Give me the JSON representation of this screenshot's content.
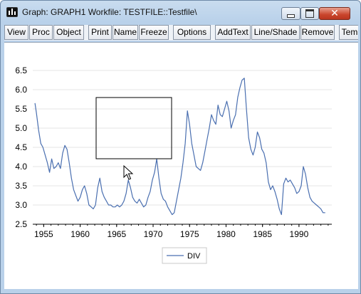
{
  "window": {
    "title": "Graph: GRAPH1   Workfile: TESTFILE::Testfile\\",
    "buttons": {
      "minimize_icon": "minimize-icon",
      "maximize_icon": "maximize-icon",
      "close_icon": "close-icon",
      "close_glyph": "✕"
    }
  },
  "toolbar": {
    "buttons": [
      "View",
      "Proc",
      "Object",
      "Print",
      "Name",
      "Freeze",
      "Options",
      "AddText",
      "Line/Shade",
      "Remove",
      "Tem"
    ]
  },
  "chart_data": {
    "type": "line",
    "title": "",
    "xlabel": "",
    "ylabel": "",
    "xlim": [
      1953.5,
      1994.5
    ],
    "ylim": [
      2.5,
      6.5
    ],
    "x_ticks": [
      "1955",
      "1960",
      "1965",
      "1970",
      "1975",
      "1980",
      "1985",
      "1990"
    ],
    "y_ticks": [
      "2.5",
      "3.0",
      "3.5",
      "4.0",
      "4.5",
      "5.0",
      "5.5",
      "6.0",
      "6.5"
    ],
    "grid": true,
    "legend": "bottom-center",
    "series": [
      {
        "name": "DIV",
        "color": "#4a6fb0",
        "points": [
          [
            1953.8,
            5.65
          ],
          [
            1954.0,
            5.4
          ],
          [
            1954.3,
            4.95
          ],
          [
            1954.6,
            4.6
          ],
          [
            1954.9,
            4.5
          ],
          [
            1955.2,
            4.3
          ],
          [
            1955.5,
            4.1
          ],
          [
            1955.8,
            3.85
          ],
          [
            1956.1,
            4.2
          ],
          [
            1956.4,
            3.95
          ],
          [
            1956.7,
            4.0
          ],
          [
            1957.0,
            4.1
          ],
          [
            1957.3,
            3.95
          ],
          [
            1957.6,
            4.35
          ],
          [
            1957.9,
            4.55
          ],
          [
            1958.2,
            4.45
          ],
          [
            1958.5,
            4.1
          ],
          [
            1958.8,
            3.7
          ],
          [
            1959.1,
            3.4
          ],
          [
            1959.4,
            3.25
          ],
          [
            1959.7,
            3.1
          ],
          [
            1960.0,
            3.2
          ],
          [
            1960.3,
            3.4
          ],
          [
            1960.6,
            3.5
          ],
          [
            1960.9,
            3.3
          ],
          [
            1961.2,
            3.0
          ],
          [
            1961.5,
            2.95
          ],
          [
            1961.8,
            2.9
          ],
          [
            1962.1,
            3.0
          ],
          [
            1962.4,
            3.45
          ],
          [
            1962.7,
            3.7
          ],
          [
            1963.0,
            3.35
          ],
          [
            1963.3,
            3.2
          ],
          [
            1963.6,
            3.1
          ],
          [
            1963.9,
            3.0
          ],
          [
            1964.2,
            3.0
          ],
          [
            1964.5,
            2.95
          ],
          [
            1964.8,
            2.95
          ],
          [
            1965.1,
            3.0
          ],
          [
            1965.4,
            2.95
          ],
          [
            1965.7,
            3.0
          ],
          [
            1966.0,
            3.1
          ],
          [
            1966.3,
            3.3
          ],
          [
            1966.6,
            3.65
          ],
          [
            1966.9,
            3.45
          ],
          [
            1967.2,
            3.2
          ],
          [
            1967.5,
            3.1
          ],
          [
            1967.8,
            3.05
          ],
          [
            1968.1,
            3.15
          ],
          [
            1968.4,
            3.05
          ],
          [
            1968.7,
            2.95
          ],
          [
            1969.0,
            3.0
          ],
          [
            1969.3,
            3.2
          ],
          [
            1969.6,
            3.35
          ],
          [
            1969.9,
            3.65
          ],
          [
            1970.2,
            3.85
          ],
          [
            1970.5,
            4.2
          ],
          [
            1970.8,
            3.7
          ],
          [
            1971.1,
            3.3
          ],
          [
            1971.4,
            3.15
          ],
          [
            1971.7,
            3.1
          ],
          [
            1972.0,
            2.95
          ],
          [
            1972.3,
            2.85
          ],
          [
            1972.6,
            2.75
          ],
          [
            1972.9,
            2.8
          ],
          [
            1973.2,
            3.1
          ],
          [
            1973.5,
            3.4
          ],
          [
            1973.8,
            3.7
          ],
          [
            1974.1,
            4.1
          ],
          [
            1974.4,
            4.6
          ],
          [
            1974.7,
            5.45
          ],
          [
            1975.0,
            5.1
          ],
          [
            1975.3,
            4.6
          ],
          [
            1975.6,
            4.3
          ],
          [
            1975.9,
            4.0
          ],
          [
            1976.2,
            3.95
          ],
          [
            1976.5,
            3.9
          ],
          [
            1976.8,
            4.1
          ],
          [
            1977.1,
            4.4
          ],
          [
            1977.4,
            4.7
          ],
          [
            1977.7,
            5.0
          ],
          [
            1978.0,
            5.35
          ],
          [
            1978.3,
            5.2
          ],
          [
            1978.6,
            5.1
          ],
          [
            1978.9,
            5.6
          ],
          [
            1979.2,
            5.35
          ],
          [
            1979.5,
            5.3
          ],
          [
            1979.8,
            5.5
          ],
          [
            1980.1,
            5.7
          ],
          [
            1980.4,
            5.45
          ],
          [
            1980.7,
            5.0
          ],
          [
            1981.0,
            5.2
          ],
          [
            1981.3,
            5.35
          ],
          [
            1981.6,
            5.8
          ],
          [
            1981.9,
            6.05
          ],
          [
            1982.2,
            6.25
          ],
          [
            1982.5,
            6.3
          ],
          [
            1982.8,
            5.5
          ],
          [
            1983.1,
            4.75
          ],
          [
            1983.4,
            4.45
          ],
          [
            1983.7,
            4.3
          ],
          [
            1984.0,
            4.5
          ],
          [
            1984.3,
            4.9
          ],
          [
            1984.6,
            4.75
          ],
          [
            1984.9,
            4.45
          ],
          [
            1985.2,
            4.35
          ],
          [
            1985.5,
            4.1
          ],
          [
            1985.8,
            3.6
          ],
          [
            1986.1,
            3.4
          ],
          [
            1986.4,
            3.5
          ],
          [
            1986.7,
            3.35
          ],
          [
            1987.0,
            3.15
          ],
          [
            1987.3,
            2.9
          ],
          [
            1987.6,
            2.75
          ],
          [
            1987.9,
            3.55
          ],
          [
            1988.2,
            3.7
          ],
          [
            1988.5,
            3.6
          ],
          [
            1988.8,
            3.65
          ],
          [
            1989.1,
            3.55
          ],
          [
            1989.4,
            3.45
          ],
          [
            1989.7,
            3.3
          ],
          [
            1990.0,
            3.35
          ],
          [
            1990.3,
            3.5
          ],
          [
            1990.6,
            4.0
          ],
          [
            1990.9,
            3.8
          ],
          [
            1991.2,
            3.45
          ],
          [
            1991.5,
            3.2
          ],
          [
            1991.8,
            3.1
          ],
          [
            1992.1,
            3.05
          ],
          [
            1992.4,
            3.0
          ],
          [
            1992.7,
            2.95
          ],
          [
            1993.0,
            2.9
          ],
          [
            1993.3,
            2.8
          ],
          [
            1993.6,
            2.8
          ]
        ]
      }
    ],
    "axis_color": "#000000",
    "grid_color": "#e6e6e6"
  }
}
